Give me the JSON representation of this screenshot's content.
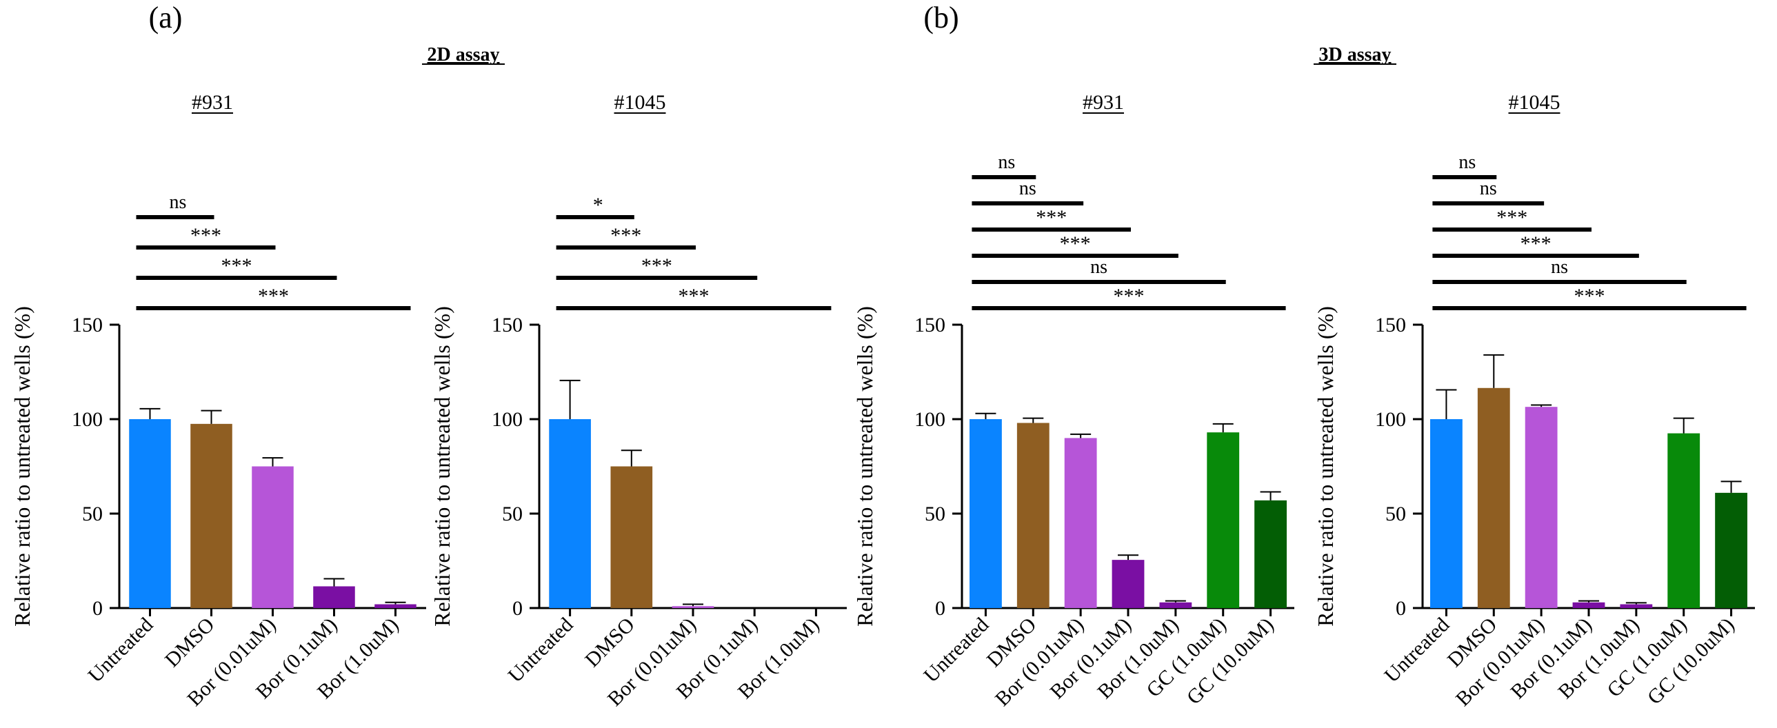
{
  "figure": {
    "panel_labels": [
      "(a)",
      "(b)"
    ],
    "section_titles": [
      "2D assay",
      "3D assay"
    ],
    "colors": {
      "Untreated": "#0a84ff",
      "DMSO": "#8f5e22",
      "Bor (0.01uM)": "#b655d8",
      "Bor (0.1uM)": "#7a0fa3",
      "Bor (1.0uM)": "#7a0fa3",
      "GC (1.0uM)": "#088a0a",
      "GC (10.0uM)": "#035e05",
      "axis": "#000000"
    }
  },
  "chart_data": [
    {
      "type": "bar",
      "panel": "(a)",
      "assay": "2D assay",
      "title": "#931",
      "ylabel": "Relative ratio to untreated wells (%)",
      "ylim": [
        0,
        150
      ],
      "yticks": [
        0,
        50,
        100,
        150
      ],
      "categories": [
        "Untreated",
        "DMSO",
        "Bor (0.01uM)",
        "Bor (0.1uM)",
        "Bor (1.0uM)"
      ],
      "values": [
        100,
        97.5,
        75,
        11.5,
        2
      ],
      "errors": [
        5.5,
        7,
        4.5,
        4,
        1
      ],
      "significance": [
        {
          "from": "Untreated",
          "to": "DMSO",
          "label": "ns"
        },
        {
          "from": "Untreated",
          "to": "Bor (0.01uM)",
          "label": "***"
        },
        {
          "from": "Untreated",
          "to": "Bor (0.1uM)",
          "label": "***"
        },
        {
          "from": "Untreated",
          "to": "Bor (1.0uM)",
          "label": "***"
        }
      ]
    },
    {
      "type": "bar",
      "panel": "(a)",
      "assay": "2D assay",
      "title": "#1045",
      "ylabel": "Relative ratio to untreated wells (%)",
      "ylim": [
        0,
        150
      ],
      "yticks": [
        0,
        50,
        100,
        150
      ],
      "categories": [
        "Untreated",
        "DMSO",
        "Bor (0.01uM)",
        "Bor (0.1uM)",
        "Bor (1.0uM)"
      ],
      "values": [
        100,
        75,
        1,
        0,
        0
      ],
      "errors": [
        20.5,
        8.5,
        1,
        0,
        0
      ],
      "significance": [
        {
          "from": "Untreated",
          "to": "DMSO",
          "label": "*"
        },
        {
          "from": "Untreated",
          "to": "Bor (0.01uM)",
          "label": "***"
        },
        {
          "from": "Untreated",
          "to": "Bor (0.1uM)",
          "label": "***"
        },
        {
          "from": "Untreated",
          "to": "Bor (1.0uM)",
          "label": "***"
        }
      ]
    },
    {
      "type": "bar",
      "panel": "(b)",
      "assay": "3D assay",
      "title": "#931",
      "ylabel": "Relative ratio to untreated wells (%)",
      "ylim": [
        0,
        150
      ],
      "yticks": [
        0,
        50,
        100,
        150
      ],
      "categories": [
        "Untreated",
        "DMSO",
        "Bor (0.01uM)",
        "Bor (0.1uM)",
        "Bor (1.0uM)",
        "GC (1.0uM)",
        "GC (10.0uM)"
      ],
      "values": [
        100,
        98,
        90,
        25.5,
        3,
        93,
        57
      ],
      "errors": [
        3,
        2.5,
        2,
        2.5,
        0.8,
        4.5,
        4.5
      ],
      "significance": [
        {
          "from": "Untreated",
          "to": "DMSO",
          "label": "ns"
        },
        {
          "from": "Untreated",
          "to": "Bor (0.01uM)",
          "label": "ns"
        },
        {
          "from": "Untreated",
          "to": "Bor (0.1uM)",
          "label": "***"
        },
        {
          "from": "Untreated",
          "to": "Bor (1.0uM)",
          "label": "***"
        },
        {
          "from": "Untreated",
          "to": "GC (1.0uM)",
          "label": "ns"
        },
        {
          "from": "Untreated",
          "to": "GC (10.0uM)",
          "label": "***"
        }
      ]
    },
    {
      "type": "bar",
      "panel": "(b)",
      "assay": "3D assay",
      "title": "#1045",
      "ylabel": "Relative ratio to untreated wells (%)",
      "ylim": [
        0,
        150
      ],
      "yticks": [
        0,
        50,
        100,
        150
      ],
      "categories": [
        "Untreated",
        "DMSO",
        "Bor (0.01uM)",
        "Bor (0.1uM)",
        "Bor (1.0uM)",
        "GC (1.0uM)",
        "GC (10.0uM)"
      ],
      "values": [
        100,
        116.5,
        106.5,
        3,
        2,
        92.5,
        61
      ],
      "errors": [
        15.5,
        17.5,
        1,
        0.8,
        0.8,
        8,
        6
      ],
      "significance": [
        {
          "from": "Untreated",
          "to": "DMSO",
          "label": "ns"
        },
        {
          "from": "Untreated",
          "to": "Bor (0.01uM)",
          "label": "ns"
        },
        {
          "from": "Untreated",
          "to": "Bor (0.1uM)",
          "label": "***"
        },
        {
          "from": "Untreated",
          "to": "Bor (1.0uM)",
          "label": "***"
        },
        {
          "from": "Untreated",
          "to": "GC (1.0uM)",
          "label": "ns"
        },
        {
          "from": "Untreated",
          "to": "GC (10.0uM)",
          "label": "***"
        }
      ]
    }
  ]
}
